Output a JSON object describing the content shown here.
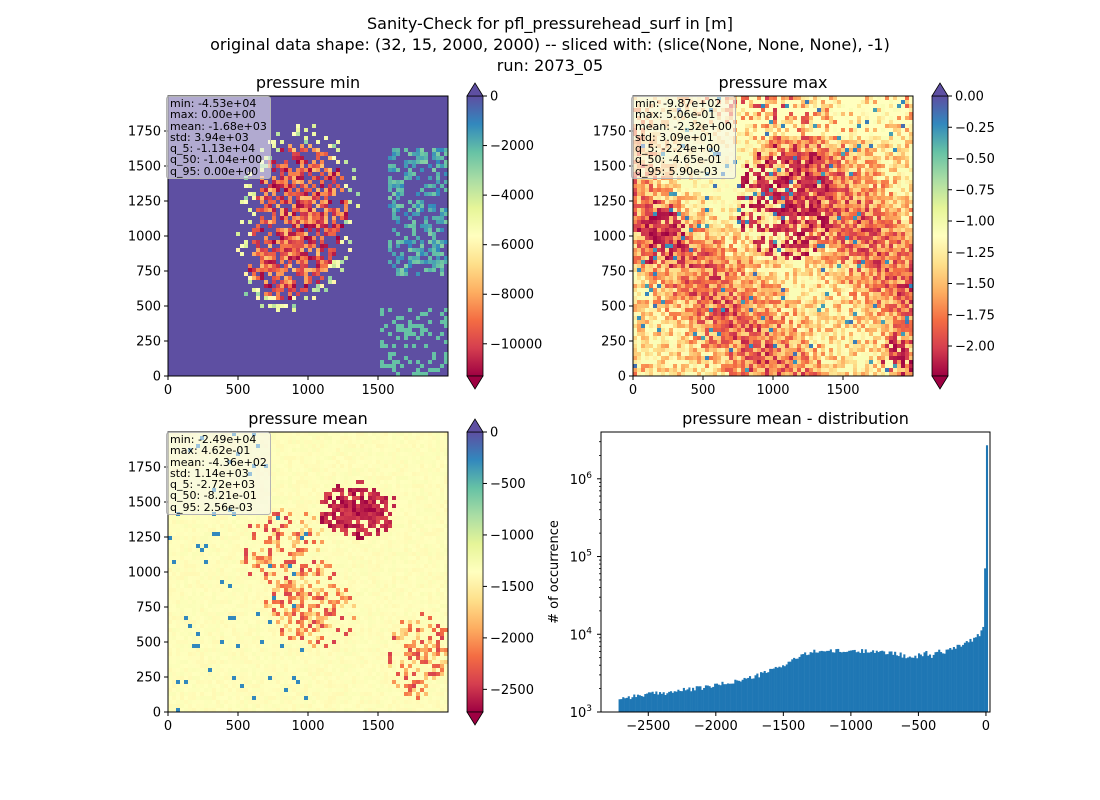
{
  "figure": {
    "title_lines": [
      "Sanity-Check for pfl_pressurehead_surf in [m]",
      "original data shape: (32, 15, 2000, 2000) -- sliced with: (slice(None, None, None), -1)",
      "run: 2073_05"
    ]
  },
  "chart_data": [
    {
      "type": "heatmap",
      "title": "pressure min",
      "xlim": [
        0,
        2000
      ],
      "ylim": [
        0,
        2000
      ],
      "xticks": [
        0,
        500,
        1000,
        1500
      ],
      "yticks": [
        0,
        250,
        500,
        750,
        1000,
        1250,
        1500,
        1750
      ],
      "colormap": "Spectral",
      "colorbar": {
        "vmin": -11300,
        "vmax": 0,
        "ticks": [
          "0",
          "−2000",
          "−4000",
          "−6000",
          "−8000",
          "−10000"
        ],
        "tick_values": [
          0,
          -2000,
          -4000,
          -6000,
          -8000,
          -10000
        ],
        "extend": "both"
      },
      "stats": [
        "min: -4.53e+04",
        "max: 0.00e+00",
        "mean: -1.68e+03",
        "std: 3.94e+03",
        "q_5: -1.13e+04",
        "q_50: -1.04e+00",
        "q_95: 0.00e+00"
      ]
    },
    {
      "type": "heatmap",
      "title": "pressure max",
      "xlim": [
        0,
        2000
      ],
      "ylim": [
        0,
        2000
      ],
      "xticks": [
        0,
        500,
        1000,
        1500
      ],
      "yticks": [
        0,
        250,
        500,
        750,
        1000,
        1250,
        1500,
        1750
      ],
      "colormap": "Spectral",
      "colorbar": {
        "vmin": -2.24,
        "vmax": 0.0,
        "ticks": [
          "0.00",
          "−0.25",
          "−0.50",
          "−0.75",
          "−1.00",
          "−1.25",
          "−1.50",
          "−1.75",
          "−2.00"
        ],
        "tick_values": [
          0,
          -0.25,
          -0.5,
          -0.75,
          -1.0,
          -1.25,
          -1.5,
          -1.75,
          -2.0
        ],
        "extend": "both"
      },
      "stats": [
        "min: -9.87e+02",
        "max: 5.06e-01",
        "mean: -2.32e+00",
        "std: 3.09e+01",
        "q_5: -2.24e+00",
        "q_50: -4.65e-01",
        "q_95: 5.90e-03"
      ]
    },
    {
      "type": "heatmap",
      "title": "pressure mean",
      "xlim": [
        0,
        2000
      ],
      "ylim": [
        0,
        2000
      ],
      "xticks": [
        0,
        500,
        1000,
        1500
      ],
      "yticks": [
        0,
        250,
        500,
        750,
        1000,
        1250,
        1500,
        1750
      ],
      "colormap": "Spectral",
      "colorbar": {
        "vmin": -2720,
        "vmax": 0,
        "ticks": [
          "0",
          "−500",
          "−1000",
          "−1500",
          "−2000",
          "−2500"
        ],
        "tick_values": [
          0,
          -500,
          -1000,
          -1500,
          -2000,
          -2500
        ],
        "extend": "both"
      },
      "stats": [
        "min: -2.49e+04",
        "max: 4.62e-01",
        "mean: -4.36e+02",
        "std: 1.14e+03",
        "q_5: -2.72e+03",
        "q_50: -8.21e-01",
        "q_95: 2.56e-03"
      ]
    },
    {
      "type": "bar",
      "title": "pressure mean - distribution",
      "xlabel": "",
      "ylabel": "# of occurrence",
      "yscale": "log",
      "xlim": [
        -2850,
        30
      ],
      "ylim": [
        1000,
        4000000
      ],
      "xticks": [
        -2500,
        -2000,
        -1500,
        -1000,
        -500,
        0
      ],
      "xtick_labels": [
        "−2500",
        "−2000",
        "−1500",
        "−1000",
        "−500",
        "0"
      ],
      "yticks": [
        1000,
        10000,
        100000,
        1000000
      ],
      "ytick_labels": [
        [
          "10",
          "3"
        ],
        [
          "10",
          "4"
        ],
        [
          "10",
          "5"
        ],
        [
          "10",
          "6"
        ]
      ],
      "color": "#1f77b4",
      "bin_width": 13.6,
      "x": [
        -2720,
        -2600,
        -2500,
        -2400,
        -2300,
        -2200,
        -2100,
        -2000,
        -1900,
        -1800,
        -1700,
        -1600,
        -1500,
        -1450,
        -1400,
        -1350,
        -1300,
        -1250,
        -1200,
        -1150,
        -1100,
        -1050,
        -1000,
        -950,
        -900,
        -850,
        -800,
        -750,
        -700,
        -650,
        -600,
        -550,
        -500,
        -450,
        -400,
        -350,
        -300,
        -250,
        -200,
        -150,
        -100,
        -60,
        -30,
        -15,
        -8,
        -4
      ],
      "values": [
        1500,
        1600,
        1700,
        1750,
        1850,
        1950,
        2050,
        2200,
        2400,
        2600,
        2900,
        3400,
        4000,
        4500,
        5000,
        5400,
        5800,
        6100,
        6200,
        6000,
        6100,
        5900,
        6200,
        6000,
        6100,
        6300,
        6000,
        5700,
        5900,
        5600,
        5200,
        4800,
        5300,
        5800,
        5200,
        6200,
        5800,
        6800,
        7200,
        7800,
        8600,
        9500,
        11000,
        12500,
        13500,
        2700000
      ]
    }
  ]
}
